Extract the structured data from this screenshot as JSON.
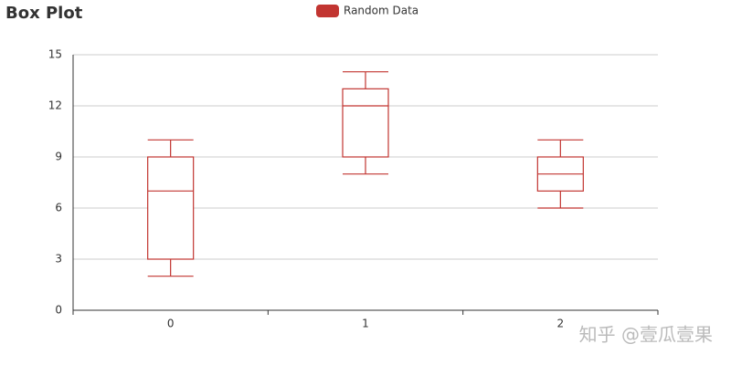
{
  "chart_data": {
    "type": "boxplot",
    "title": "Box Plot",
    "categories": [
      "0",
      "1",
      "2"
    ],
    "series": [
      {
        "name": "Random Data",
        "color": "#c23531",
        "values": [
          [
            2,
            3,
            7,
            9,
            10
          ],
          [
            8,
            9,
            12,
            13,
            14
          ],
          [
            6,
            7,
            8,
            9,
            10
          ]
        ]
      }
    ],
    "ylim": [
      0,
      15
    ],
    "yticks": [
      0,
      3,
      6,
      9,
      12,
      15
    ],
    "grid": true,
    "legend": "top",
    "watermark": "知乎 @壹瓜壹果"
  }
}
